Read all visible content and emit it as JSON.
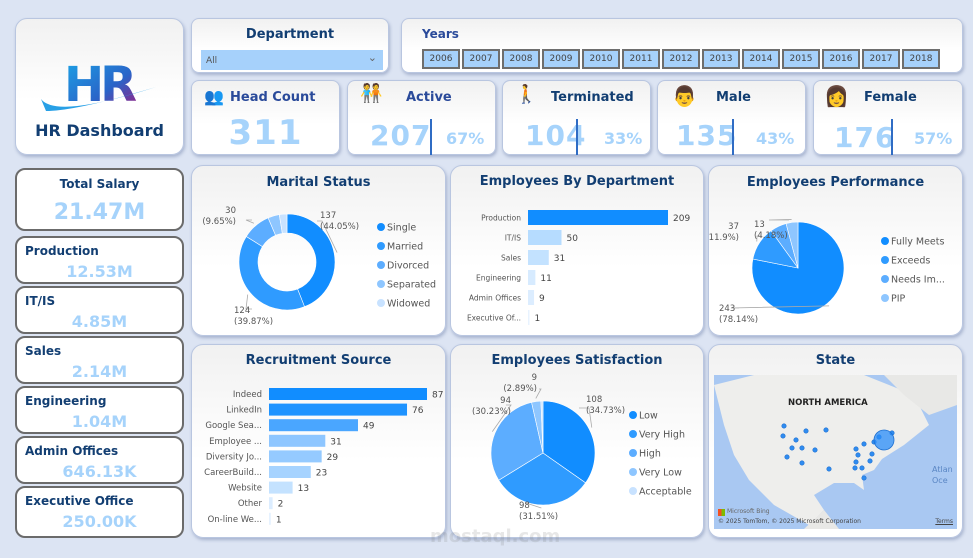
{
  "logo": {
    "text": "HR",
    "title": "HR Dashboard"
  },
  "department_slicer": {
    "label": "Department",
    "value": "All"
  },
  "years_slicer": {
    "label": "Years",
    "years": [
      "2006",
      "2007",
      "2008",
      "2009",
      "2010",
      "2011",
      "2012",
      "2013",
      "2014",
      "2015",
      "2016",
      "2017",
      "2018"
    ]
  },
  "kpis": {
    "head_count": {
      "label": "Head Count",
      "value": "311"
    },
    "active": {
      "label": "Active",
      "value": "207",
      "pct": "67%"
    },
    "terminated": {
      "label": "Terminated",
      "value": "104",
      "pct": "33%"
    },
    "male": {
      "label": "Male",
      "value": "135",
      "pct": "43%"
    },
    "female": {
      "label": "Female",
      "value": "176",
      "pct": "57%"
    }
  },
  "salary": [
    {
      "label": "Total Salary",
      "value": "21.47M"
    },
    {
      "label": "Production",
      "value": "12.53M"
    },
    {
      "label": "IT/IS",
      "value": "4.85M"
    },
    {
      "label": "Sales",
      "value": "2.14M"
    },
    {
      "label": "Engineering",
      "value": "1.04M"
    },
    {
      "label": "Admin Offices",
      "value": "646.13K"
    },
    {
      "label": "Executive Office",
      "value": "250.00K"
    }
  ],
  "colors": [
    "#118dff",
    "#2f9bff",
    "#5cadff",
    "#8ec6ff",
    "#c8e2ff",
    "#e3f0ff"
  ],
  "chart_data": [
    {
      "type": "pie",
      "donut": true,
      "title": "Marital Status",
      "categories": [
        "Single",
        "Married",
        "Divorced",
        "Separated",
        "Widowed"
      ],
      "values": [
        137,
        124,
        30,
        12,
        8
      ],
      "labels": [
        "137\n(44.05%)",
        "124\n(39.87%)",
        "30\n(9.65%)",
        "",
        ""
      ],
      "legend": "right"
    },
    {
      "type": "bar",
      "orientation": "horizontal",
      "title": "Employees By Department",
      "categories": [
        "Production",
        "IT/IS",
        "Sales",
        "Engineering",
        "Admin Offices",
        "Executive Of..."
      ],
      "values": [
        209,
        50,
        31,
        11,
        9,
        1
      ]
    },
    {
      "type": "pie",
      "title": "Employees Performance",
      "categories": [
        "Fully Meets",
        "Exceeds",
        "Needs Im...",
        "PIP"
      ],
      "values": [
        243,
        37,
        18,
        13
      ],
      "labels": [
        "243\n(78.14%)",
        "37\n(11.9%)",
        "",
        "13\n(4.18%)"
      ],
      "legend": "right"
    },
    {
      "type": "bar",
      "orientation": "horizontal",
      "title": "Recruitment Source",
      "categories": [
        "Indeed",
        "LinkedIn",
        "Google Sea...",
        "Employee ...",
        "Diversity Jo...",
        "CareerBuild...",
        "Website",
        "Other",
        "On-line We..."
      ],
      "values": [
        87,
        76,
        49,
        31,
        29,
        23,
        13,
        2,
        1
      ]
    },
    {
      "type": "pie",
      "title": "Employees Satisfaction",
      "categories": [
        "Low",
        "Very High",
        "High",
        "Very Low",
        "Acceptable"
      ],
      "values": [
        108,
        98,
        94,
        9,
        2
      ],
      "labels": [
        "108\n(34.73%)",
        "98\n(31.51%)",
        "94\n(30.23%)",
        "9\n(2.89%)",
        ""
      ],
      "legend": "right"
    }
  ],
  "map": {
    "title": "State",
    "region_label": "NORTH AMERICA",
    "ocean_label": "Atlan\nOce",
    "attribution": "© 2025 TomTom, © 2025 Microsoft Corporation",
    "bing": "Microsoft Bing",
    "terms": "Terms"
  },
  "watermark": "mostaql.com"
}
